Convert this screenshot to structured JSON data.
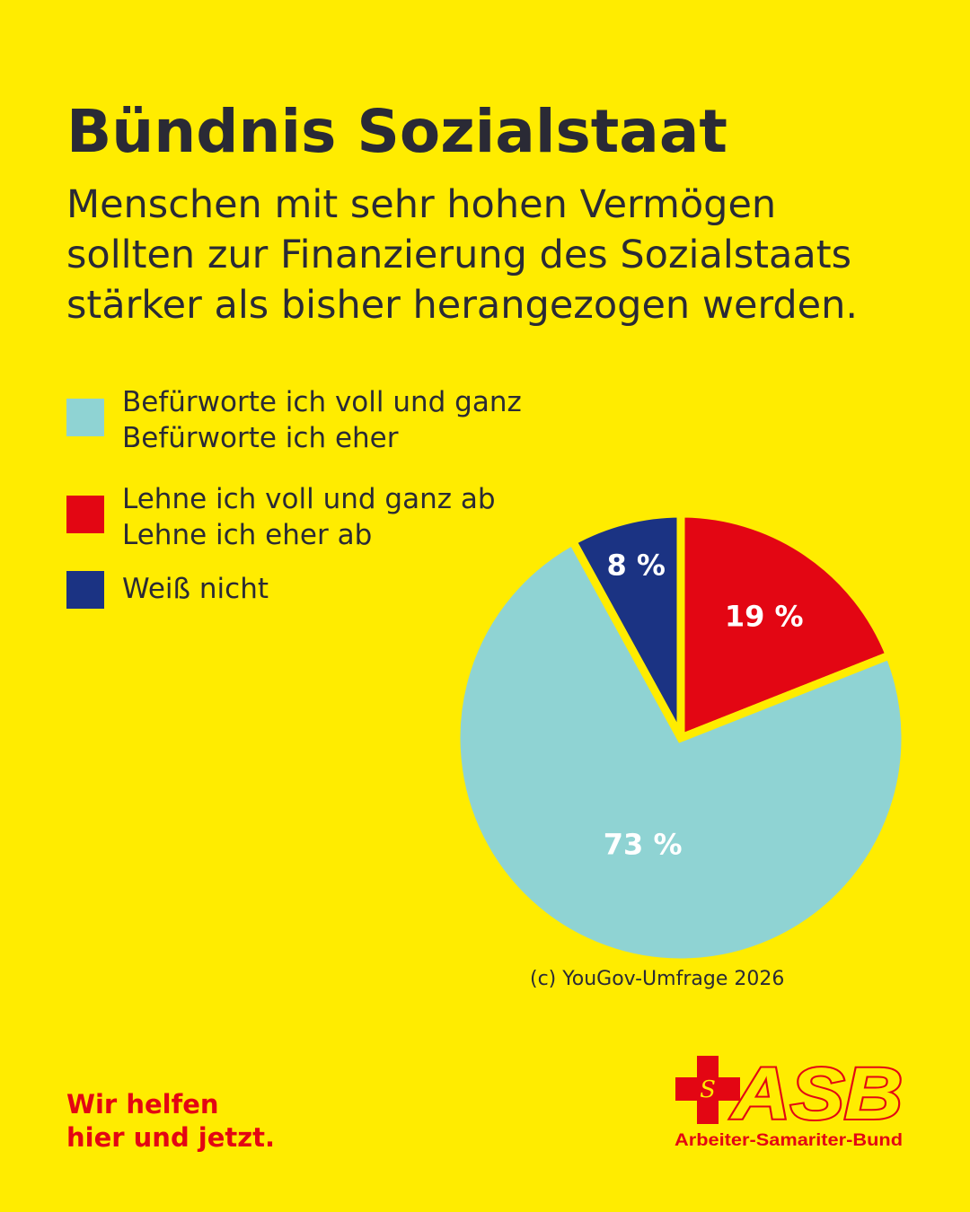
{
  "header": {
    "title": "Bündnis Sozialstaat",
    "subtitle_lines": [
      "Menschen mit sehr hohen Vermögen",
      "sollten zur Finanzierung des Sozialstaats",
      "stärker als bisher herangezogen werden."
    ]
  },
  "legend": [
    {
      "lines": [
        "Befürworte ich voll und ganz",
        "Befürworte ich eher"
      ],
      "color": "#8FD3D3"
    },
    {
      "lines": [
        "Lehne ich voll und ganz ab",
        "Lehne ich eher ab"
      ],
      "color": "#E30613"
    },
    {
      "lines": [
        "Weiß nicht"
      ],
      "color": "#1B3383"
    }
  ],
  "chart_data": {
    "type": "pie",
    "categories": [
      "Befürworte ich voll und ganz / Befürworte ich eher",
      "Lehne ich voll und ganz ab / Lehne ich eher ab",
      "Weiß nicht"
    ],
    "values": [
      73,
      19,
      8
    ],
    "labels": [
      "73 %",
      "19 %",
      "8 %"
    ],
    "colors": [
      "#8FD3D3",
      "#E30613",
      "#1B3383"
    ],
    "title": "Bündnis Sozialstaat",
    "legend_position": "top-left"
  },
  "source": "(c) YouGov-Umfrage 2026",
  "slogan_lines": [
    "Wir helfen",
    "hier und jetzt."
  ],
  "logo": {
    "text": "ASB",
    "cross_letter": "S",
    "tagline": "Arbeiter-Samariter-Bund",
    "color": "#E30613"
  },
  "colors": {
    "background": "#FFEC00",
    "text": "#2a2a35",
    "brand_red": "#E30613"
  }
}
